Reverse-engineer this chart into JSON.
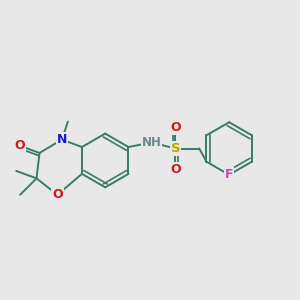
{
  "bg_color": "#e8e8e8",
  "bond_color": "#3a7a6a",
  "bond_width": 1.4,
  "N_color": "#1a1acc",
  "O_color": "#cc1a1a",
  "S_color": "#b8a800",
  "F_color": "#cc44bb",
  "H_color": "#6a8a8a",
  "font_size": 8.5,
  "fig_w": 3.0,
  "fig_h": 3.0,
  "dpi": 100,
  "xlim": [
    0,
    10
  ],
  "ylim": [
    0,
    10
  ]
}
